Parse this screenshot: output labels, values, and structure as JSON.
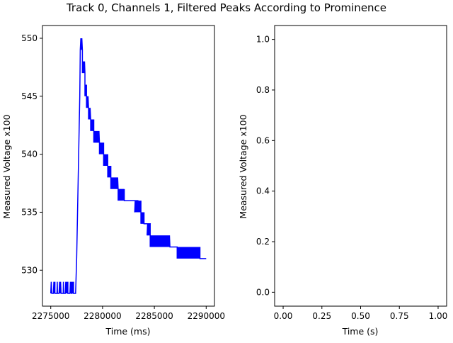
{
  "figure": {
    "title": "Track 0, Channels 1, Filtered Peaks According to Prominence"
  },
  "chart_data": [
    {
      "type": "line",
      "xlabel": "Time (ms)",
      "ylabel": "Measured Voltage x100",
      "xlim": [
        2274200,
        2290800
      ],
      "ylim": [
        526.9,
        551.1
      ],
      "xticks": [
        2275000,
        2280000,
        2285000,
        2290000
      ],
      "xtick_labels": [
        "2275000",
        "2280000",
        "2285000",
        "2290000"
      ],
      "yticks": [
        530,
        535,
        540,
        545,
        550
      ],
      "ytick_labels": [
        "530",
        "535",
        "540",
        "545",
        "550"
      ],
      "grid": false,
      "series": [
        {
          "color": "#0000ff",
          "segments": [
            {
              "x_start": 2275000,
              "x_end": 2277400,
              "y_base": 528,
              "y_peak": 529,
              "bursts": [
                [
                  2275000,
                  2275100
                ],
                [
                  2275250,
                  2275400
                ],
                [
                  2275600,
                  2275650
                ],
                [
                  2275800,
                  2276000
                ],
                [
                  2276200,
                  2276250
                ],
                [
                  2276400,
                  2276650
                ],
                [
                  2276850,
                  2277000
                ],
                [
                  2277050,
                  2277200
                ]
              ]
            }
          ],
          "rise": [
            [
              2277400,
              528
            ],
            [
              2277500,
              531
            ],
            [
              2277650,
              538
            ],
            [
              2277800,
              545
            ],
            [
              2277850,
              549
            ]
          ],
          "steps": [
            {
              "x_start": 2277850,
              "x_end": 2278050,
              "low": 549,
              "high": 550
            },
            {
              "x_start": 2278050,
              "x_end": 2278300,
              "low": 547,
              "high": 548
            },
            {
              "x_start": 2278300,
              "x_end": 2278450,
              "low": 545,
              "high": 546
            },
            {
              "x_start": 2278450,
              "x_end": 2278650,
              "low": 544,
              "high": 545
            },
            {
              "x_start": 2278650,
              "x_end": 2278850,
              "low": 543,
              "high": 544
            },
            {
              "x_start": 2278850,
              "x_end": 2279150,
              "low": 542,
              "high": 543
            },
            {
              "x_start": 2279150,
              "x_end": 2279700,
              "low": 541,
              "high": 542
            },
            {
              "x_start": 2279700,
              "x_end": 2280100,
              "low": 540,
              "high": 541
            },
            {
              "x_start": 2280100,
              "x_end": 2280500,
              "low": 539,
              "high": 540
            },
            {
              "x_start": 2280500,
              "x_end": 2280800,
              "low": 538,
              "high": 539
            },
            {
              "x_start": 2280800,
              "x_end": 2281500,
              "low": 537,
              "high": 538
            },
            {
              "x_start": 2281500,
              "x_end": 2282100,
              "low": 536,
              "high": 537
            },
            {
              "x_start": 2282100,
              "x_end": 2283400,
              "low": 536,
              "high": 536
            },
            {
              "x_start": 2283100,
              "x_end": 2283700,
              "low": 535,
              "high": 536
            },
            {
              "x_start": 2283700,
              "x_end": 2284000,
              "low": 534,
              "high": 535
            },
            {
              "x_start": 2284000,
              "x_end": 2284600,
              "low": 534,
              "high": 534
            },
            {
              "x_start": 2284300,
              "x_end": 2284600,
              "low": 533,
              "high": 534
            },
            {
              "x_start": 2284600,
              "x_end": 2286500,
              "low": 532,
              "high": 533
            },
            {
              "x_start": 2286500,
              "x_end": 2287200,
              "low": 532,
              "high": 532
            },
            {
              "x_start": 2287200,
              "x_end": 2289400,
              "low": 531,
              "high": 532
            },
            {
              "x_start": 2289400,
              "x_end": 2290000,
              "low": 531,
              "high": 531
            }
          ]
        }
      ]
    },
    {
      "type": "line",
      "xlabel": "Time (s)",
      "ylabel": "Measured Voltage x100",
      "xlim": [
        -0.055,
        1.055
      ],
      "ylim": [
        -0.055,
        1.055
      ],
      "xticks": [
        0.0,
        0.25,
        0.5,
        0.75,
        1.0
      ],
      "xtick_labels": [
        "0.00",
        "0.25",
        "0.50",
        "0.75",
        "1.00"
      ],
      "yticks": [
        0.0,
        0.2,
        0.4,
        0.6,
        0.8,
        1.0
      ],
      "ytick_labels": [
        "0.0",
        "0.2",
        "0.4",
        "0.6",
        "0.8",
        "1.0"
      ],
      "grid": false,
      "series": []
    }
  ]
}
